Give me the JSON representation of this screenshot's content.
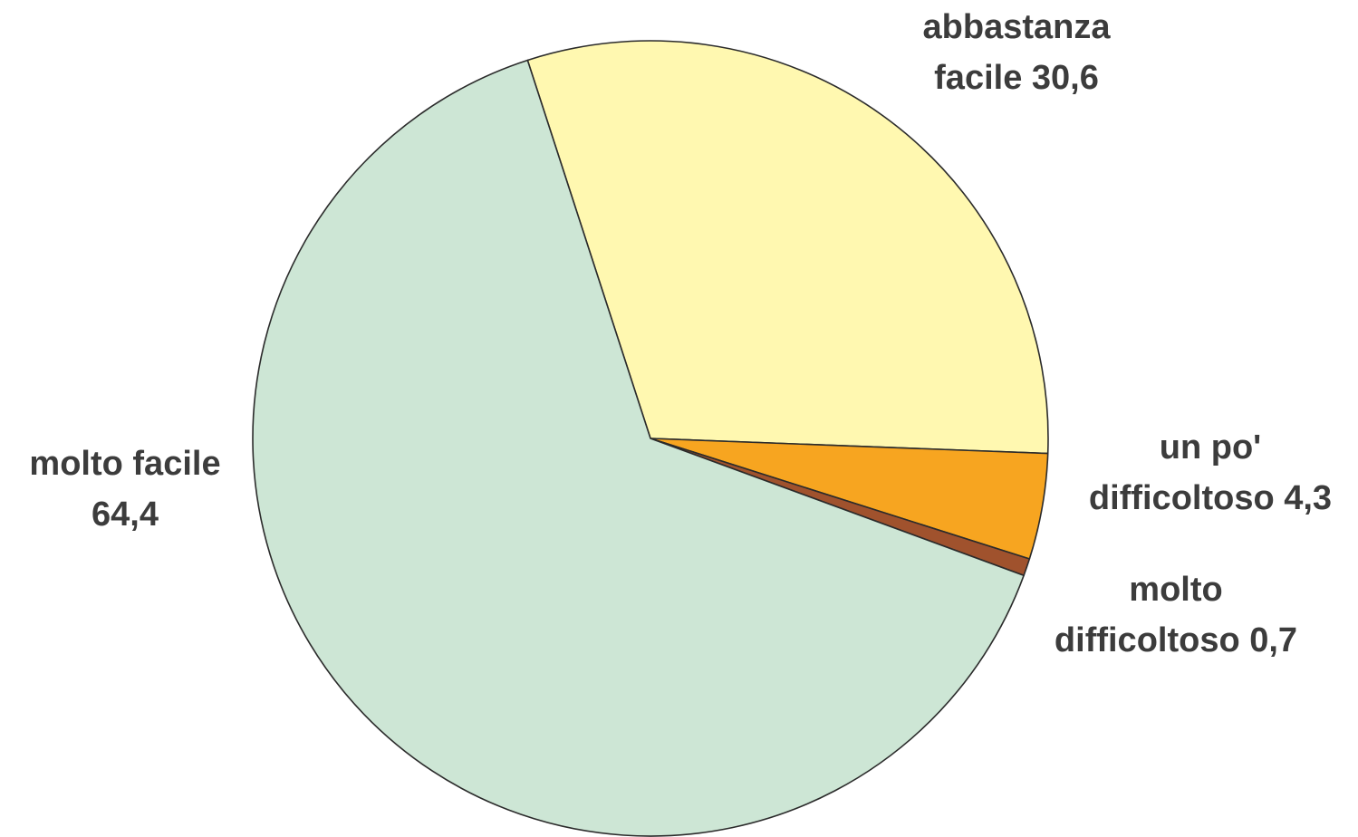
{
  "chart_data": {
    "type": "pie",
    "title": "",
    "slices": [
      {
        "category": "abbastanza facile",
        "value": 30.6,
        "label_lines": [
          "abbastanza",
          "facile 30,6"
        ],
        "color": "#FFF8B0"
      },
      {
        "category": "un po' difficoltoso",
        "value": 4.3,
        "label_lines": [
          "un po'",
          "difficoltoso 4,3"
        ],
        "color": "#F7A520"
      },
      {
        "category": "molto difficoltoso",
        "value": 0.7,
        "label_lines": [
          "molto",
          "difficoltoso 0,7"
        ],
        "color": "#A0522D"
      },
      {
        "category": "molto facile",
        "value": 64.4,
        "label_lines": [
          "molto facile",
          "64,4"
        ],
        "color": "#CDE6D5"
      }
    ],
    "start_angle_deg": -108,
    "direction": "clockwise",
    "legend": "none",
    "data_labels": "outside, category name and value"
  }
}
